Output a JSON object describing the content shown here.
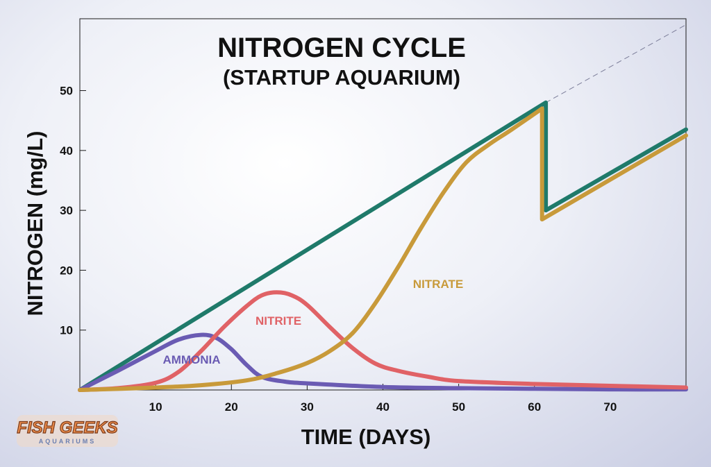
{
  "chart_data": {
    "type": "line",
    "title": "NITROGEN CYCLE",
    "subtitle": "(STARTUP AQUARIUM)",
    "xlabel": "TIME (DAYS)",
    "ylabel": "NITROGEN (mg/L)",
    "xlim": [
      0,
      80
    ],
    "ylim": [
      0,
      62
    ],
    "x_ticks": [
      10,
      20,
      30,
      40,
      50,
      60,
      70
    ],
    "y_ticks": [
      10,
      20,
      30,
      40,
      50
    ],
    "grid": false,
    "series": [
      {
        "key": "total",
        "color": "#1f7a6a",
        "points": [
          [
            0,
            0
          ],
          [
            61.5,
            48
          ],
          [
            61.5,
            30
          ],
          [
            80,
            43.5
          ]
        ]
      },
      {
        "key": "ammonia",
        "name": "AMMONIA",
        "color": "#6a5bb3",
        "points": [
          [
            0,
            0
          ],
          [
            5,
            3.2
          ],
          [
            10,
            6.5
          ],
          [
            13,
            8.4
          ],
          [
            16,
            9.2
          ],
          [
            18,
            8.7
          ],
          [
            20,
            6.8
          ],
          [
            22,
            4.2
          ],
          [
            24,
            2.2
          ],
          [
            27,
            1.4
          ],
          [
            30,
            1.1
          ],
          [
            40,
            0.5
          ],
          [
            50,
            0.3
          ],
          [
            60,
            0.2
          ],
          [
            70,
            0.1
          ],
          [
            80,
            0.1
          ]
        ]
      },
      {
        "key": "nitrite",
        "name": "NITRITE",
        "color": "#e06266",
        "points": [
          [
            0,
            0
          ],
          [
            5,
            0.3
          ],
          [
            10,
            1.2
          ],
          [
            13,
            3
          ],
          [
            16,
            6.5
          ],
          [
            19,
            10.5
          ],
          [
            22,
            14
          ],
          [
            24,
            15.8
          ],
          [
            26,
            16.3
          ],
          [
            28,
            15.8
          ],
          [
            30,
            14.2
          ],
          [
            33,
            10.5
          ],
          [
            36,
            7
          ],
          [
            39,
            4.4
          ],
          [
            42,
            3.2
          ],
          [
            46,
            2.2
          ],
          [
            50,
            1.5
          ],
          [
            60,
            1.0
          ],
          [
            70,
            0.7
          ],
          [
            80,
            0.4
          ]
        ]
      },
      {
        "key": "nitrate",
        "name": "NITRATE",
        "color": "#c89a3a",
        "points": [
          [
            0,
            0
          ],
          [
            10,
            0.4
          ],
          [
            16,
            0.8
          ],
          [
            22,
            1.6
          ],
          [
            26,
            2.8
          ],
          [
            30,
            4.5
          ],
          [
            33,
            6.5
          ],
          [
            36,
            9.5
          ],
          [
            39,
            14.5
          ],
          [
            42,
            20.5
          ],
          [
            45,
            27
          ],
          [
            48,
            33
          ],
          [
            51,
            38
          ],
          [
            54,
            41
          ],
          [
            57,
            43.5
          ],
          [
            61,
            47
          ],
          [
            61,
            28.5
          ],
          [
            80,
            42.5
          ]
        ]
      },
      {
        "key": "projection",
        "color": "#7b7d99",
        "dashed": true,
        "points": [
          [
            61.5,
            48
          ],
          [
            80,
            61
          ]
        ]
      }
    ]
  },
  "logo": {
    "name": "FISH GEEKS",
    "subtitle": "AQUARIUMS"
  }
}
